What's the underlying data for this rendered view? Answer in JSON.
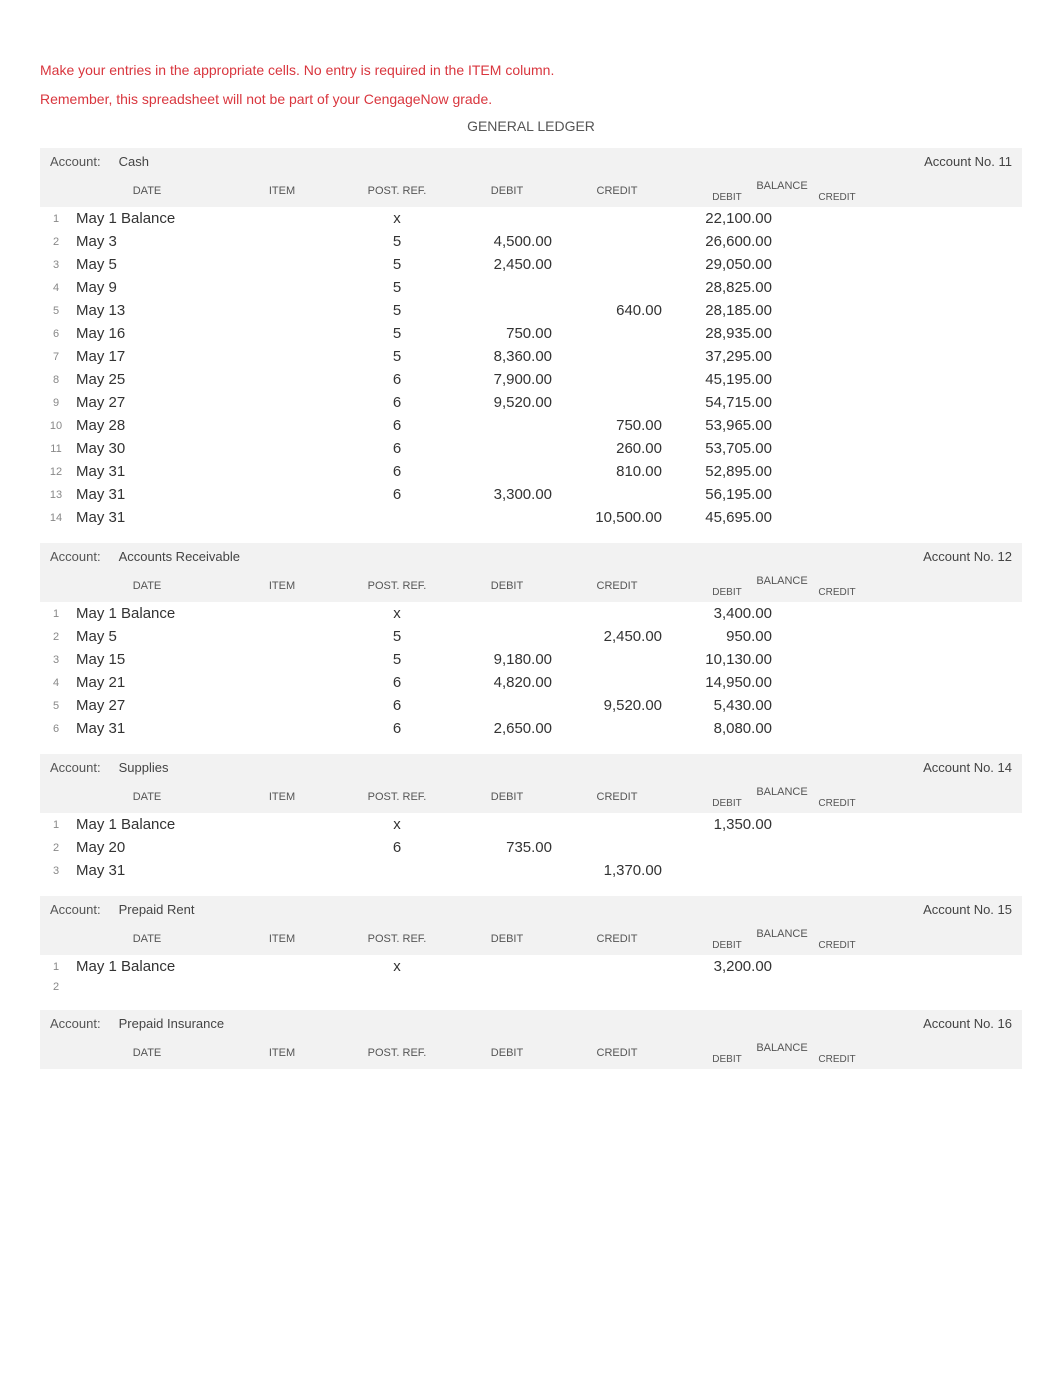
{
  "instructions_line1": "Make your entries in the appropriate cells.   No entry is required in the ITEM column.",
  "instructions_line2": "Remember, this spreadsheet will not be part of your CengageNow grade.",
  "title": "GENERAL LEDGER",
  "headers": {
    "account_label": "Account:",
    "date": "DATE",
    "item": "ITEM",
    "post_ref": "POST. REF.",
    "debit": "DEBIT",
    "credit": "CREDIT",
    "balance": "BALANCE",
    "bal_debit": "DEBIT",
    "bal_credit": "CREDIT"
  },
  "accounts": [
    {
      "name": "Cash",
      "number": "Account No. 11",
      "rows": [
        {
          "n": "1",
          "date": "May 1 Balance",
          "post": "x",
          "debit": "",
          "credit": "",
          "bdebit": "22,100.00",
          "bcredit": ""
        },
        {
          "n": "2",
          "date": "May 3",
          "post": "5",
          "debit": "4,500.00",
          "credit": "",
          "bdebit": "26,600.00",
          "bcredit": ""
        },
        {
          "n": "3",
          "date": "May 5",
          "post": "5",
          "debit": "2,450.00",
          "credit": "",
          "bdebit": "29,050.00",
          "bcredit": ""
        },
        {
          "n": "4",
          "date": "May 9",
          "post": "5",
          "debit": "",
          "credit": "",
          "bdebit": "28,825.00",
          "bcredit": ""
        },
        {
          "n": "5",
          "date": "May 13",
          "post": "5",
          "debit": "",
          "credit": "640.00",
          "bdebit": "28,185.00",
          "bcredit": ""
        },
        {
          "n": "6",
          "date": "May 16",
          "post": "5",
          "debit": "750.00",
          "credit": "",
          "bdebit": "28,935.00",
          "bcredit": ""
        },
        {
          "n": "7",
          "date": "May  17",
          "post": "5",
          "debit": "8,360.00",
          "credit": "",
          "bdebit": "37,295.00",
          "bcredit": ""
        },
        {
          "n": "8",
          "date": "May 25",
          "post": "6",
          "debit": "7,900.00",
          "credit": "",
          "bdebit": "45,195.00",
          "bcredit": ""
        },
        {
          "n": "9",
          "date": "May 27",
          "post": "6",
          "debit": "9,520.00",
          "credit": "",
          "bdebit": "54,715.00",
          "bcredit": ""
        },
        {
          "n": "10",
          "date": "May 28",
          "post": "6",
          "debit": "",
          "credit": "750.00",
          "bdebit": "53,965.00",
          "bcredit": ""
        },
        {
          "n": "11",
          "date": "May  30",
          "post": "6",
          "debit": "",
          "credit": "260.00",
          "bdebit": "53,705.00",
          "bcredit": ""
        },
        {
          "n": "12",
          "date": "May 31",
          "post": "6",
          "debit": "",
          "credit": "810.00",
          "bdebit": "52,895.00",
          "bcredit": ""
        },
        {
          "n": "13",
          "date": "May  31",
          "post": "6",
          "debit": "3,300.00",
          "credit": "",
          "bdebit": "56,195.00",
          "bcredit": ""
        },
        {
          "n": "14",
          "date": "May 31",
          "post": "",
          "debit": "",
          "credit": "10,500.00",
          "bdebit": "45,695.00",
          "bcredit": ""
        }
      ]
    },
    {
      "name": "Accounts Receivable",
      "number": "Account No. 12",
      "rows": [
        {
          "n": "1",
          "date": "May 1 Balance",
          "post": "x",
          "debit": "",
          "credit": "",
          "bdebit": "3,400.00",
          "bcredit": ""
        },
        {
          "n": "2",
          "date": "May 5",
          "post": "5",
          "debit": "",
          "credit": "2,450.00",
          "bdebit": "950.00",
          "bcredit": ""
        },
        {
          "n": "3",
          "date": "May 15",
          "post": "5",
          "debit": "9,180.00",
          "credit": "",
          "bdebit": "10,130.00",
          "bcredit": ""
        },
        {
          "n": "4",
          "date": "May 21",
          "post": "6",
          "debit": "4,820.00",
          "credit": "",
          "bdebit": "14,950.00",
          "bcredit": ""
        },
        {
          "n": "5",
          "date": "May 27",
          "post": "6",
          "debit": "",
          "credit": "9,520.00",
          "bdebit": "5,430.00",
          "bcredit": ""
        },
        {
          "n": "6",
          "date": "May 31",
          "post": "6",
          "debit": "2,650.00",
          "credit": "",
          "bdebit": "8,080.00",
          "bcredit": ""
        }
      ]
    },
    {
      "name": "Supplies",
      "number": "Account No. 14",
      "rows": [
        {
          "n": "1",
          "date": "May 1 Balance",
          "post": "x",
          "debit": "",
          "credit": "",
          "bdebit": "1,350.00",
          "bcredit": ""
        },
        {
          "n": "2",
          "date": "May 20",
          "post": "6",
          "debit": "735.00",
          "credit": "",
          "bdebit": "",
          "bcredit": ""
        },
        {
          "n": "3",
          "date": "May 31",
          "post": "",
          "debit": "",
          "credit": "1,370.00",
          "bdebit": "",
          "bcredit": ""
        }
      ]
    },
    {
      "name": "Prepaid Rent",
      "number": "Account No. 15",
      "rows": [
        {
          "n": "1",
          "date": "May 1 Balance",
          "post": "x",
          "debit": "",
          "credit": "",
          "bdebit": "3,200.00",
          "bcredit": ""
        },
        {
          "n": "2",
          "date": "",
          "post": "",
          "debit": "",
          "credit": "",
          "bdebit": "",
          "bcredit": ""
        }
      ]
    },
    {
      "name": "Prepaid Insurance",
      "number": "Account No. 16",
      "rows": []
    }
  ]
}
